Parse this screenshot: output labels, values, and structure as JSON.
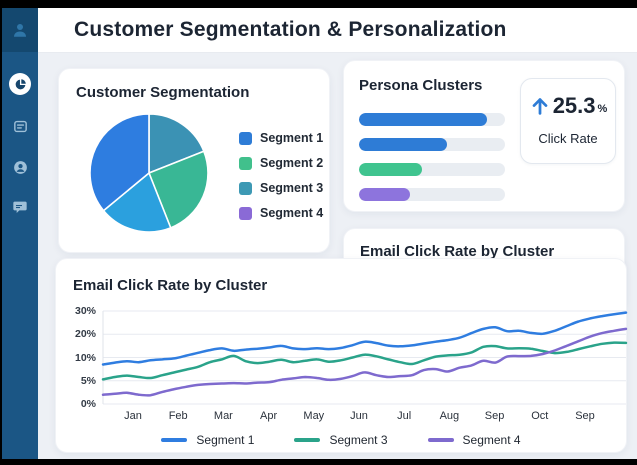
{
  "header": {
    "title": "Customer Segmentation & Personalization"
  },
  "sidebar": {
    "profile_icon": "person",
    "nav_icons": [
      {
        "name": "pie-chart",
        "active": true
      },
      {
        "name": "card-list",
        "active": false
      },
      {
        "name": "user",
        "active": false
      },
      {
        "name": "chat",
        "active": false
      }
    ]
  },
  "segmentation_card": {
    "title": "Customer Segmentation"
  },
  "persona_card": {
    "title": "Persona Clusters"
  },
  "stat_card": {
    "trend": "up",
    "value": "25.3",
    "unit": "%",
    "label": "Click Rate",
    "accent": "#2E7CD6"
  },
  "email_right_card": {
    "title": "Email Click Rate by Cluster"
  },
  "chart_card": {
    "title": "Email Click Rate by Cluster"
  },
  "chart_data": [
    {
      "type": "pie",
      "title": "Customer Segmentation",
      "start_at": "12-oclock",
      "direction": "clockwise",
      "slices": [
        {
          "label": "Segment 3",
          "value": 19,
          "color": "#3B92B4"
        },
        {
          "label": "Segment 2",
          "value": 25,
          "color": "#39B795"
        },
        {
          "label": "",
          "value": 20,
          "color": "#2BA0DE"
        },
        {
          "label": "Segment 1",
          "value": 36,
          "color": "#2E7DE0"
        }
      ],
      "legend": [
        {
          "label": "Segment 1",
          "color": "#2E7CD6"
        },
        {
          "label": "Segment 2",
          "color": "#41C08C"
        },
        {
          "label": "Segment 3",
          "color": "#3D99B4"
        },
        {
          "label": "Segment 4",
          "color": "#8A6AD6"
        }
      ]
    },
    {
      "type": "bar",
      "title": "Persona Clusters",
      "orientation": "horizontal",
      "values_percent": [
        88,
        60,
        43,
        35
      ],
      "colors": [
        "#2E7CD6",
        "#2E7CD6",
        "#3FC48F",
        "#8D74DD"
      ],
      "track_color": "#E9EDF2"
    },
    {
      "type": "line",
      "title": "Email Click Rate by Cluster",
      "x_tick_labels": [
        "Jan",
        "Feb",
        "Mar",
        "Apr",
        "May",
        "Jun",
        "Jul",
        "Aug",
        "Sep",
        "Oct",
        "Sep"
      ],
      "y_tick_values": [
        0,
        5,
        10,
        20,
        30
      ],
      "y_tick_labels": [
        "0%",
        "5%",
        "10%",
        "20%",
        "30%"
      ],
      "y_scale_note": "tick values unevenly valued but evenly spaced on axis",
      "grid": true,
      "legend_position": "bottom",
      "series": [
        {
          "name": "Segment 1",
          "color": "#2F7DE0",
          "values": [
            8.5,
            8.9,
            9.2,
            9.0,
            9.4,
            9.6,
            9.8,
            10.8,
            12.0,
            13.2,
            13.9,
            12.9,
            13.4,
            13.8,
            14.3,
            15.0,
            13.9,
            13.6,
            14.0,
            13.6,
            14.1,
            15.3,
            16.8,
            16.2,
            15.1,
            14.8,
            15.2,
            16.0,
            16.8,
            17.5,
            18.5,
            20.5,
            22.3,
            23.0,
            21.3,
            21.5,
            20.6,
            20.2,
            21.5,
            23.5,
            25.5,
            26.8,
            27.8,
            28.6,
            29.3
          ]
        },
        {
          "name": "Segment 3",
          "color": "#2AA38A",
          "values": [
            5.3,
            5.8,
            6.1,
            5.8,
            5.6,
            6.2,
            6.8,
            7.4,
            8.0,
            9.0,
            9.6,
            10.7,
            9.2,
            8.8,
            9.1,
            9.5,
            9.0,
            9.3,
            9.6,
            9.1,
            9.4,
            10.0,
            11.2,
            10.5,
            9.6,
            9.0,
            8.6,
            9.4,
            10.4,
            10.9,
            11.2,
            12.2,
            14.6,
            14.9,
            13.9,
            14.0,
            13.8,
            12.8,
            11.9,
            12.4,
            13.6,
            14.8,
            15.9,
            16.4,
            16.3
          ]
        },
        {
          "name": "Segment 4",
          "color": "#7E6ACE",
          "values": [
            2.0,
            2.2,
            2.4,
            2.0,
            1.9,
            2.6,
            3.2,
            3.7,
            4.1,
            4.3,
            4.4,
            4.5,
            4.4,
            4.6,
            4.7,
            5.2,
            5.5,
            5.8,
            5.6,
            5.2,
            5.4,
            6.0,
            6.8,
            6.2,
            5.8,
            6.0,
            6.2,
            7.3,
            7.5,
            7.0,
            7.8,
            8.3,
            9.3,
            8.9,
            10.4,
            10.6,
            10.7,
            11.5,
            13.0,
            15.0,
            17.0,
            19.0,
            20.5,
            21.5,
            22.3
          ]
        }
      ]
    }
  ]
}
